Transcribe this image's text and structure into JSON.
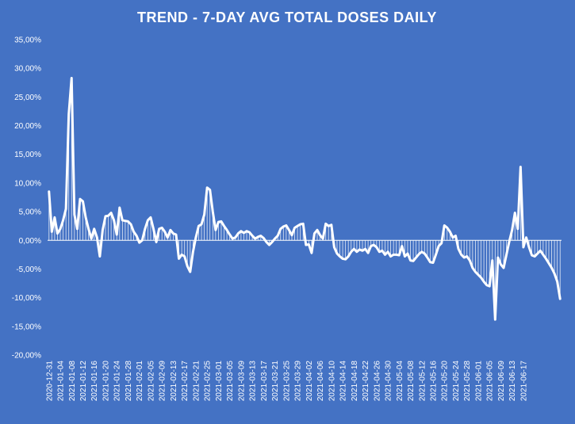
{
  "chart_data": {
    "type": "line",
    "title": "TREND - 7-DAY AVG TOTAL DOSES DAILY",
    "xlabel": "",
    "ylabel": "",
    "ylim": [
      -20,
      35
    ],
    "y_ticks": [
      "35,00%",
      "30,00%",
      "25,00%",
      "20,00%",
      "15,00%",
      "10,00%",
      "5,00%",
      "0,00%",
      "-5,00%",
      "-10,00%",
      "-15,00%",
      "-20,00%"
    ],
    "y_tick_values": [
      35,
      30,
      25,
      20,
      15,
      10,
      5,
      0,
      -5,
      -10,
      -15,
      -20
    ],
    "x_tick_labels": [
      "2020-12-31",
      "2021-01-04",
      "2021-01-08",
      "2021-01-12",
      "2021-01-16",
      "2021-01-20",
      "2021-01-24",
      "2021-01-28",
      "2021-02-01",
      "2021-02-05",
      "2021-02-09",
      "2021-02-13",
      "2021-02-17",
      "2021-02-21",
      "2021-02-25",
      "2021-03-01",
      "2021-03-05",
      "2021-03-09",
      "2021-03-13",
      "2021-03-17",
      "2021-03-21",
      "2021-03-25",
      "2021-03-29",
      "2021-04-02",
      "2021-04-06",
      "2021-04-10",
      "2021-04-14",
      "2021-04-18",
      "2021-04-22",
      "2021-04-26",
      "2021-04-30",
      "2021-05-04",
      "2021-05-08",
      "2021-05-12",
      "2021-05-16",
      "2021-05-20",
      "2021-05-24",
      "2021-05-28",
      "2021-06-01",
      "2021-06-05",
      "2021-06-09",
      "2021-06-13",
      "2021-06-17"
    ],
    "line_color": "#FFFFFF",
    "background_color": "#4472C4",
    "drop_lines": true,
    "grid": false,
    "series": [
      {
        "x_start": "2020-12-31",
        "x_step_days": 1,
        "values": [
          8.5,
          1.5,
          4.0,
          1.2,
          2.0,
          3.5,
          5.5,
          22.0,
          28.3,
          4.5,
          2.0,
          7.2,
          6.8,
          4.0,
          2.0,
          0.3,
          2.0,
          0.5,
          -2.8,
          1.8,
          4.2,
          4.3,
          4.8,
          3.5,
          1.0,
          5.7,
          3.5,
          3.4,
          3.3,
          2.8,
          1.5,
          0.8,
          -0.4,
          0.0,
          2.0,
          3.5,
          4.0,
          2.0,
          -0.3,
          2.0,
          2.2,
          1.5,
          0.5,
          1.8,
          1.2,
          1.0,
          -3.2,
          -2.5,
          -2.8,
          -4.5,
          -5.5,
          -2.0,
          0.5,
          2.5,
          2.8,
          4.5,
          9.2,
          8.8,
          5.0,
          1.8,
          3.2,
          3.3,
          2.5,
          1.8,
          1.0,
          0.3,
          0.5,
          1.2,
          1.6,
          1.3,
          1.6,
          1.4,
          0.8,
          0.3,
          0.6,
          0.8,
          0.4,
          -0.3,
          -0.8,
          -0.3,
          0.3,
          0.8,
          2.0,
          2.4,
          2.6,
          1.8,
          0.9,
          2.2,
          2.5,
          2.8,
          2.9,
          -0.8,
          -0.7,
          -2.2,
          1.2,
          1.8,
          0.9,
          0.3,
          2.9,
          2.5,
          2.7,
          -1.2,
          -2.3,
          -2.8,
          -3.2,
          -3.3,
          -2.8,
          -2.0,
          -1.5,
          -2.0,
          -1.6,
          -1.8,
          -1.5,
          -2.2,
          -1.0,
          -0.8,
          -1.2,
          -2.0,
          -1.8,
          -2.5,
          -2.0,
          -2.8,
          -2.5,
          -2.5,
          -2.6,
          -1.0,
          -2.8,
          -2.3,
          -3.5,
          -3.6,
          -3.0,
          -2.4,
          -2.0,
          -2.3,
          -3.0,
          -3.8,
          -3.9,
          -2.5,
          -1.0,
          -0.5,
          2.6,
          2.2,
          1.5,
          0.5,
          0.8,
          -1.5,
          -2.5,
          -3.0,
          -2.8,
          -3.5,
          -4.8,
          -5.5,
          -6.0,
          -6.5,
          -7.2,
          -7.8,
          -8.0,
          -3.5,
          -13.8,
          -3.0,
          -4.2,
          -4.8,
          -2.5,
          -0.2,
          1.8,
          4.8,
          2.0,
          12.8,
          -1.2,
          0.5,
          -1.2,
          -2.6,
          -2.8,
          -2.3,
          -1.8,
          -2.5,
          -3.2,
          -4.0,
          -4.8,
          -5.8,
          -7.2,
          -10.2
        ]
      }
    ]
  }
}
